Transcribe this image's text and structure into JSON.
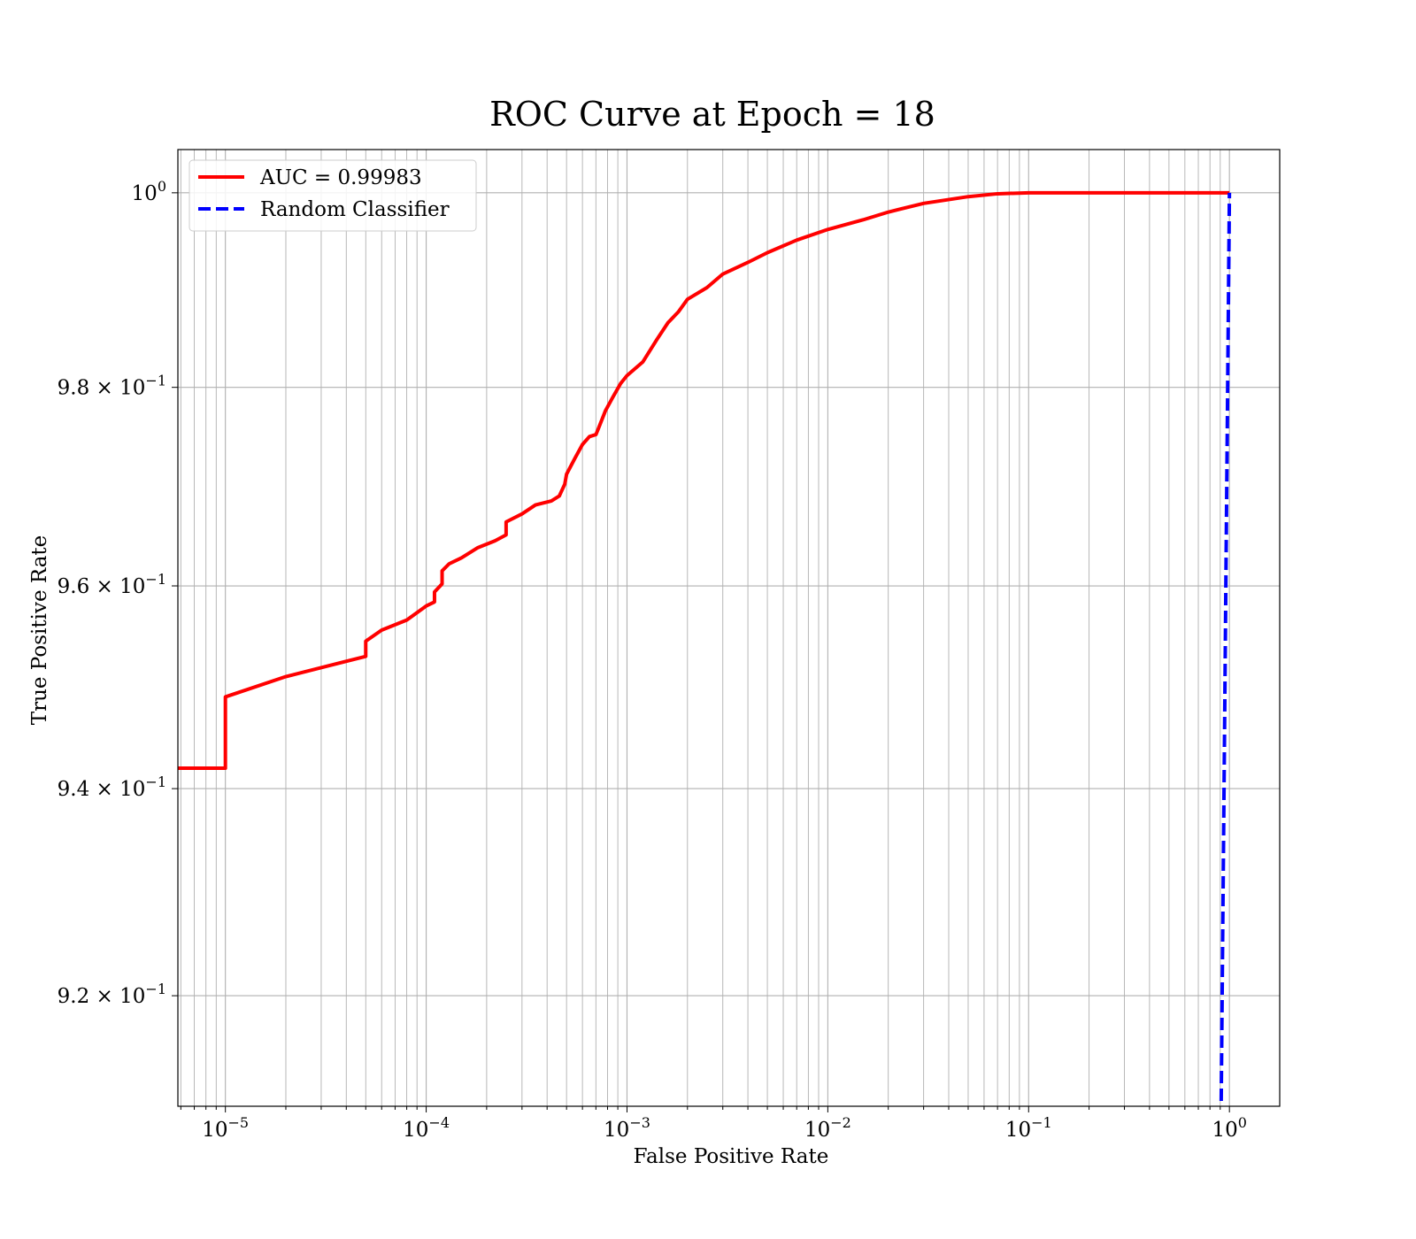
{
  "chart_data": {
    "type": "line",
    "title": "ROC Curve at Epoch = 18",
    "xlabel": "False Positive Rate",
    "ylabel": "True Positive Rate",
    "xscale": "log",
    "yscale": "log",
    "xlim": [
      5.8e-06,
      1.78
    ],
    "ylim": [
      0.9095,
      1.0045
    ],
    "grid": true,
    "grid_minor_x": true,
    "legend_position": "upper-left",
    "x_ticks": [
      {
        "value": 1e-05,
        "base": "10",
        "exp": "−5"
      },
      {
        "value": 0.0001,
        "base": "10",
        "exp": "−4"
      },
      {
        "value": 0.001,
        "base": "10",
        "exp": "−3"
      },
      {
        "value": 0.01,
        "base": "10",
        "exp": "−2"
      },
      {
        "value": 0.1,
        "base": "10",
        "exp": "−1"
      },
      {
        "value": 1,
        "base": "10",
        "exp": "0"
      }
    ],
    "y_ticks": [
      {
        "value": 1.0,
        "mantissa": "",
        "base": "10",
        "exp": "0"
      },
      {
        "value": 0.98,
        "mantissa": "9.8",
        "base": "10",
        "exp": "−1"
      },
      {
        "value": 0.96,
        "mantissa": "9.6",
        "base": "10",
        "exp": "−1"
      },
      {
        "value": 0.94,
        "mantissa": "9.4",
        "base": "10",
        "exp": "−1"
      },
      {
        "value": 0.92,
        "mantissa": "9.2",
        "base": "10",
        "exp": "−1"
      }
    ],
    "series": [
      {
        "name": "AUC = 0.99983",
        "color": "#ff0000",
        "style": "solid",
        "x": [
          5.8e-06,
          1e-05,
          1e-05,
          2e-05,
          5e-05,
          5e-05,
          6e-05,
          8e-05,
          0.0001,
          0.00011,
          0.00011,
          0.00012,
          0.00012,
          0.00013,
          0.00015,
          0.00018,
          0.00022,
          0.00025,
          0.00025,
          0.0003,
          0.00035,
          0.00042,
          0.00046,
          0.00049,
          0.0005,
          0.00055,
          0.0006,
          0.00065,
          0.0007,
          0.00072,
          0.00078,
          0.00085,
          0.00093,
          0.001,
          0.0012,
          0.0014,
          0.0016,
          0.0018,
          0.002,
          0.0025,
          0.003,
          0.004,
          0.005,
          0.007,
          0.01,
          0.015,
          0.02,
          0.03,
          0.05,
          0.07,
          0.1,
          0.12,
          0.2,
          0.5,
          1.0
        ],
        "y": [
          0.942,
          0.942,
          0.949,
          0.951,
          0.953,
          0.9545,
          0.9556,
          0.9566,
          0.958,
          0.9584,
          0.9594,
          0.9602,
          0.9615,
          0.9622,
          0.9628,
          0.9638,
          0.9645,
          0.9651,
          0.9664,
          0.9672,
          0.9681,
          0.9685,
          0.969,
          0.9702,
          0.9712,
          0.9728,
          0.9742,
          0.975,
          0.9752,
          0.9758,
          0.9776,
          0.979,
          0.9804,
          0.9812,
          0.9826,
          0.9848,
          0.9866,
          0.9877,
          0.989,
          0.9902,
          0.9916,
          0.9928,
          0.9938,
          0.9951,
          0.9962,
          0.9972,
          0.998,
          0.9989,
          0.9996,
          0.9999,
          1.0,
          1.0,
          1.0,
          1.0,
          1.0
        ]
      },
      {
        "name": "Random Classifier",
        "color": "#0000ff",
        "style": "dashed",
        "x": [
          0.91,
          1.0
        ],
        "y": [
          0.91,
          1.0
        ]
      }
    ]
  }
}
